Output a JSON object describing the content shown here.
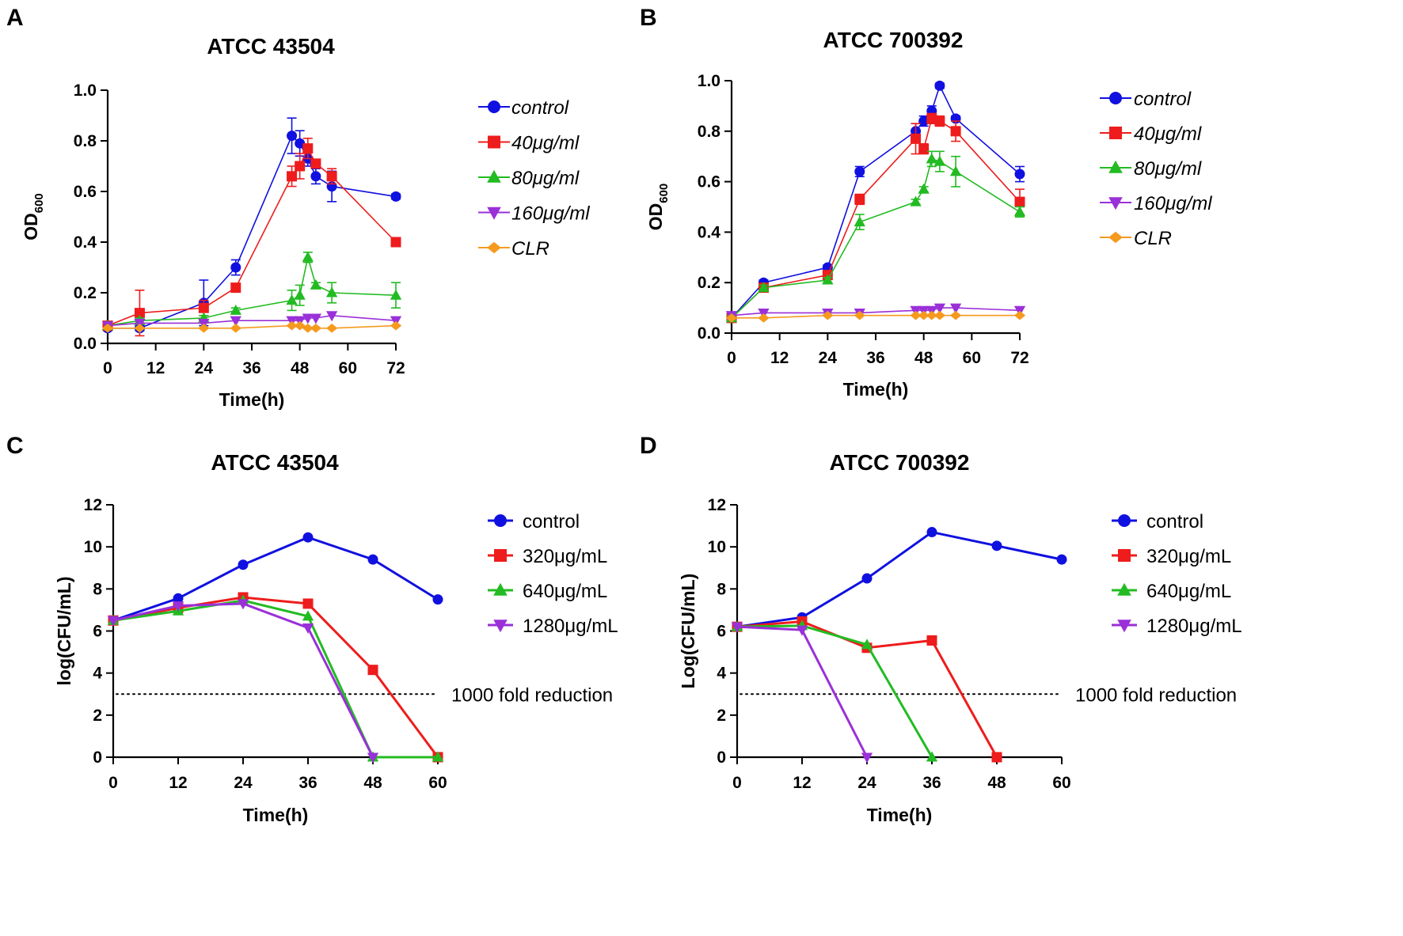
{
  "colors": {
    "control": "#1010e0",
    "40": "#ee1c1c",
    "80": "#22bb22",
    "160": "#9a30d8",
    "CLR": "#f59a1f",
    "axis": "#000000"
  },
  "chart_data": [
    {
      "panel": "A",
      "type": "line",
      "title": "ATCC 43504",
      "xlabel": "Time(h)",
      "ylabel": "OD",
      "ylabel_sub": "600",
      "xlim": [
        0,
        72
      ],
      "ylim": [
        0,
        1.0
      ],
      "xticks": [
        0,
        12,
        24,
        36,
        48,
        60,
        72
      ],
      "xtick_labels": [
        "0",
        "12",
        "24",
        "36",
        "48",
        "60",
        "72"
      ],
      "yticks": [
        0,
        0.2,
        0.4,
        0.6,
        0.8,
        1.0
      ],
      "ytick_labels": [
        "0.0",
        "0.2",
        "0.4",
        "0.6",
        "0.8",
        "1.0"
      ],
      "legend_italic": true,
      "series": [
        {
          "name": "control",
          "color_key": "control",
          "marker": "circle",
          "x": [
            0,
            8,
            24,
            32,
            46,
            48,
            50,
            52,
            56,
            72
          ],
          "y": [
            0.06,
            0.06,
            0.16,
            0.3,
            0.82,
            0.79,
            0.73,
            0.66,
            0.62,
            0.58
          ],
          "err": [
            0.01,
            0.01,
            0.09,
            0.03,
            0.07,
            0.05,
            0.03,
            0.03,
            0.06,
            0.01
          ]
        },
        {
          "name": "40μg/ml",
          "color_key": "40",
          "marker": "square",
          "x": [
            0,
            8,
            24,
            32,
            46,
            48,
            50,
            52,
            56,
            72
          ],
          "y": [
            0.07,
            0.12,
            0.14,
            0.22,
            0.66,
            0.7,
            0.77,
            0.71,
            0.66,
            0.4
          ],
          "err": [
            0.01,
            0.09,
            0.03,
            0.01,
            0.04,
            0.05,
            0.04,
            0.01,
            0.03,
            0.01
          ]
        },
        {
          "name": "80μg/ml",
          "color_key": "80",
          "marker": "triangle-up",
          "x": [
            0,
            8,
            24,
            32,
            46,
            48,
            50,
            52,
            56,
            72
          ],
          "y": [
            0.07,
            0.09,
            0.1,
            0.13,
            0.17,
            0.19,
            0.34,
            0.23,
            0.2,
            0.19
          ],
          "err": [
            0.01,
            0.01,
            0.01,
            0.01,
            0.04,
            0.04,
            0.02,
            0.01,
            0.04,
            0.05
          ]
        },
        {
          "name": "160μg/ml",
          "color_key": "160",
          "marker": "triangle-down",
          "x": [
            0,
            8,
            24,
            32,
            46,
            48,
            50,
            52,
            56,
            72
          ],
          "y": [
            0.07,
            0.08,
            0.08,
            0.09,
            0.09,
            0.09,
            0.1,
            0.1,
            0.11,
            0.09
          ],
          "err": [
            0.005,
            0.005,
            0.005,
            0.005,
            0.005,
            0.005,
            0.005,
            0.005,
            0.005,
            0.005
          ]
        },
        {
          "name": "CLR",
          "color_key": "CLR",
          "marker": "diamond",
          "x": [
            0,
            8,
            24,
            32,
            46,
            48,
            50,
            52,
            56,
            72
          ],
          "y": [
            0.06,
            0.06,
            0.06,
            0.06,
            0.07,
            0.07,
            0.06,
            0.06,
            0.06,
            0.07
          ],
          "err": [
            0.005,
            0.005,
            0.005,
            0.005,
            0.005,
            0.005,
            0.005,
            0.005,
            0.005,
            0.005
          ]
        }
      ]
    },
    {
      "panel": "B",
      "type": "line",
      "title": "ATCC 700392",
      "xlabel": "Time(h)",
      "ylabel": "OD",
      "ylabel_sub": "600",
      "xlim": [
        0,
        72
      ],
      "ylim": [
        0,
        1.0
      ],
      "xticks": [
        0,
        12,
        24,
        36,
        48,
        60,
        72
      ],
      "xtick_labels": [
        "0",
        "12",
        "24",
        "36",
        "48",
        "60",
        "72"
      ],
      "yticks": [
        0,
        0.2,
        0.4,
        0.6,
        0.8,
        1.0
      ],
      "ytick_labels": [
        "0.0",
        "0.2",
        "0.4",
        "0.6",
        "0.8",
        "1.0"
      ],
      "legend_italic": true,
      "series": [
        {
          "name": "control",
          "color_key": "control",
          "marker": "circle",
          "x": [
            0,
            8,
            24,
            32,
            46,
            48,
            50,
            52,
            56,
            72
          ],
          "y": [
            0.06,
            0.2,
            0.26,
            0.64,
            0.8,
            0.84,
            0.88,
            0.98,
            0.85,
            0.63
          ],
          "err": [
            0.01,
            0.01,
            0.01,
            0.02,
            0.03,
            0.02,
            0.02,
            0.01,
            0.01,
            0.03
          ]
        },
        {
          "name": "40μg/ml",
          "color_key": "40",
          "marker": "square",
          "x": [
            0,
            8,
            24,
            32,
            46,
            48,
            50,
            52,
            56,
            72
          ],
          "y": [
            0.06,
            0.18,
            0.23,
            0.53,
            0.77,
            0.73,
            0.85,
            0.84,
            0.8,
            0.52
          ],
          "err": [
            0.01,
            0.01,
            0.01,
            0.02,
            0.06,
            0.02,
            0.02,
            0.02,
            0.04,
            0.05
          ]
        },
        {
          "name": "80μg/ml",
          "color_key": "80",
          "marker": "triangle-up",
          "x": [
            0,
            8,
            24,
            32,
            46,
            48,
            50,
            52,
            56,
            72
          ],
          "y": [
            0.06,
            0.18,
            0.21,
            0.44,
            0.52,
            0.57,
            0.69,
            0.68,
            0.64,
            0.48
          ],
          "err": [
            0.01,
            0.01,
            0.01,
            0.03,
            0.01,
            0.01,
            0.03,
            0.04,
            0.06,
            0.02
          ]
        },
        {
          "name": "160μg/ml",
          "color_key": "160",
          "marker": "triangle-down",
          "x": [
            0,
            8,
            24,
            32,
            46,
            48,
            50,
            52,
            56,
            72
          ],
          "y": [
            0.07,
            0.08,
            0.08,
            0.08,
            0.09,
            0.09,
            0.09,
            0.1,
            0.1,
            0.09
          ],
          "err": [
            0.005,
            0.005,
            0.005,
            0.005,
            0.005,
            0.005,
            0.005,
            0.005,
            0.005,
            0.005
          ]
        },
        {
          "name": "CLR",
          "color_key": "CLR",
          "marker": "diamond",
          "x": [
            0,
            8,
            24,
            32,
            46,
            48,
            50,
            52,
            56,
            72
          ],
          "y": [
            0.06,
            0.06,
            0.07,
            0.07,
            0.07,
            0.07,
            0.07,
            0.07,
            0.07,
            0.07
          ],
          "err": [
            0.005,
            0.005,
            0.005,
            0.005,
            0.005,
            0.005,
            0.005,
            0.005,
            0.005,
            0.005
          ]
        }
      ]
    },
    {
      "panel": "C",
      "type": "line",
      "title": "ATCC 43504",
      "xlabel": "Time(h)",
      "ylabel": "log(CFU/mL)",
      "xlim": [
        0,
        60
      ],
      "ylim": [
        0,
        12
      ],
      "xticks": [
        0,
        12,
        24,
        36,
        48,
        60
      ],
      "xtick_labels": [
        "0",
        "12",
        "24",
        "36",
        "48",
        "60"
      ],
      "yticks": [
        0,
        2,
        4,
        6,
        8,
        10,
        12
      ],
      "ytick_labels": [
        "0",
        "2",
        "4",
        "6",
        "8",
        "10",
        "12"
      ],
      "legend_italic": false,
      "reference_line": {
        "y": 3,
        "label": "1000 fold reduction"
      },
      "series": [
        {
          "name": "control",
          "color_key": "control",
          "marker": "circle",
          "x": [
            0,
            12,
            24,
            36,
            48,
            60
          ],
          "y": [
            6.5,
            7.55,
            9.15,
            10.45,
            9.4,
            7.5
          ]
        },
        {
          "name": "320μg/mL",
          "color_key": "40",
          "marker": "square",
          "x": [
            0,
            12,
            24,
            36,
            48,
            60
          ],
          "y": [
            6.5,
            7.1,
            7.6,
            7.3,
            4.15,
            0.0
          ]
        },
        {
          "name": "640μg/mL",
          "color_key": "80",
          "marker": "triangle-up",
          "x": [
            0,
            12,
            24,
            36,
            48,
            60
          ],
          "y": [
            6.5,
            6.95,
            7.45,
            6.7,
            0.0,
            0.0
          ]
        },
        {
          "name": "1280μg/mL",
          "color_key": "160",
          "marker": "triangle-down",
          "x": [
            0,
            12,
            24,
            36,
            48
          ],
          "y": [
            6.5,
            7.2,
            7.3,
            6.15,
            0.0
          ]
        }
      ]
    },
    {
      "panel": "D",
      "type": "line",
      "title": "ATCC 700392",
      "xlabel": "Time(h)",
      "ylabel": "Log(CFU/mL)",
      "xlim": [
        0,
        60
      ],
      "ylim": [
        0,
        12
      ],
      "xticks": [
        0,
        12,
        24,
        36,
        48,
        60
      ],
      "xtick_labels": [
        "0",
        "12",
        "24",
        "36",
        "48",
        "60"
      ],
      "yticks": [
        0,
        2,
        4,
        6,
        8,
        10,
        12
      ],
      "ytick_labels": [
        "0",
        "2",
        "4",
        "6",
        "8",
        "10",
        "12"
      ],
      "legend_italic": false,
      "reference_line": {
        "y": 3,
        "label": "1000 fold reduction"
      },
      "series": [
        {
          "name": "control",
          "color_key": "control",
          "marker": "circle",
          "x": [
            0,
            12,
            24,
            36,
            48,
            60
          ],
          "y": [
            6.2,
            6.65,
            8.5,
            10.7,
            10.05,
            9.4
          ]
        },
        {
          "name": "320μg/mL",
          "color_key": "40",
          "marker": "square",
          "x": [
            0,
            12,
            24,
            36,
            48
          ],
          "y": [
            6.2,
            6.45,
            5.2,
            5.55,
            0.0
          ]
        },
        {
          "name": "640μg/mL",
          "color_key": "80",
          "marker": "triangle-up",
          "x": [
            0,
            12,
            24,
            36
          ],
          "y": [
            6.2,
            6.25,
            5.35,
            0.0
          ]
        },
        {
          "name": "1280μg/mL",
          "color_key": "160",
          "marker": "triangle-down",
          "x": [
            0,
            12,
            24
          ],
          "y": [
            6.2,
            6.05,
            0.0
          ]
        }
      ]
    }
  ]
}
